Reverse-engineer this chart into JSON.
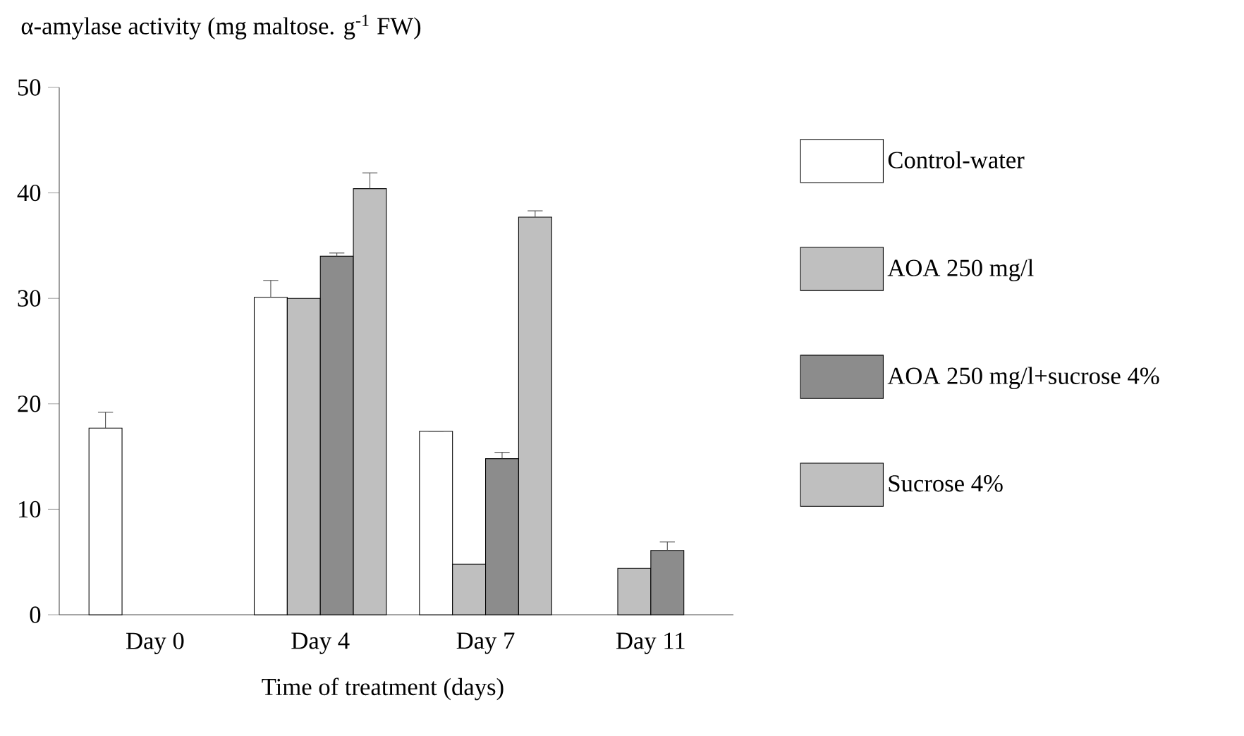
{
  "chart_data": {
    "type": "bar",
    "ylabel": "α-amylase activity (mg maltose. g$^{-1}$ FW)",
    "xlabel": "Time of treatment (days)",
    "categories": [
      "Day 0",
      "Day 4",
      "Day 7",
      "Day 11"
    ],
    "series": [
      {
        "name": "Control-water",
        "color": "#ffffff",
        "values": [
          17.7,
          30.1,
          17.4,
          null
        ],
        "errors": [
          1.5,
          1.6,
          null,
          null
        ]
      },
      {
        "name": "AOA 250 mg/l",
        "color": "#bfbfbf",
        "values": [
          null,
          30.0,
          4.8,
          4.4
        ],
        "errors": [
          null,
          null,
          null,
          null
        ]
      },
      {
        "name": "AOA 250 mg/l+sucrose 4%",
        "color": "#8c8c8c",
        "values": [
          null,
          34.0,
          14.8,
          6.1
        ],
        "errors": [
          null,
          0.3,
          0.6,
          0.8
        ]
      },
      {
        "name": "Sucrose 4%",
        "color": "#bfbfbf",
        "values": [
          null,
          40.4,
          37.7,
          null
        ],
        "errors": [
          null,
          1.5,
          0.6,
          null
        ]
      }
    ],
    "ylim": [
      0,
      50
    ],
    "yticks": [
      0,
      10,
      20,
      30,
      40,
      50
    ],
    "grid": false,
    "legend": "right"
  }
}
